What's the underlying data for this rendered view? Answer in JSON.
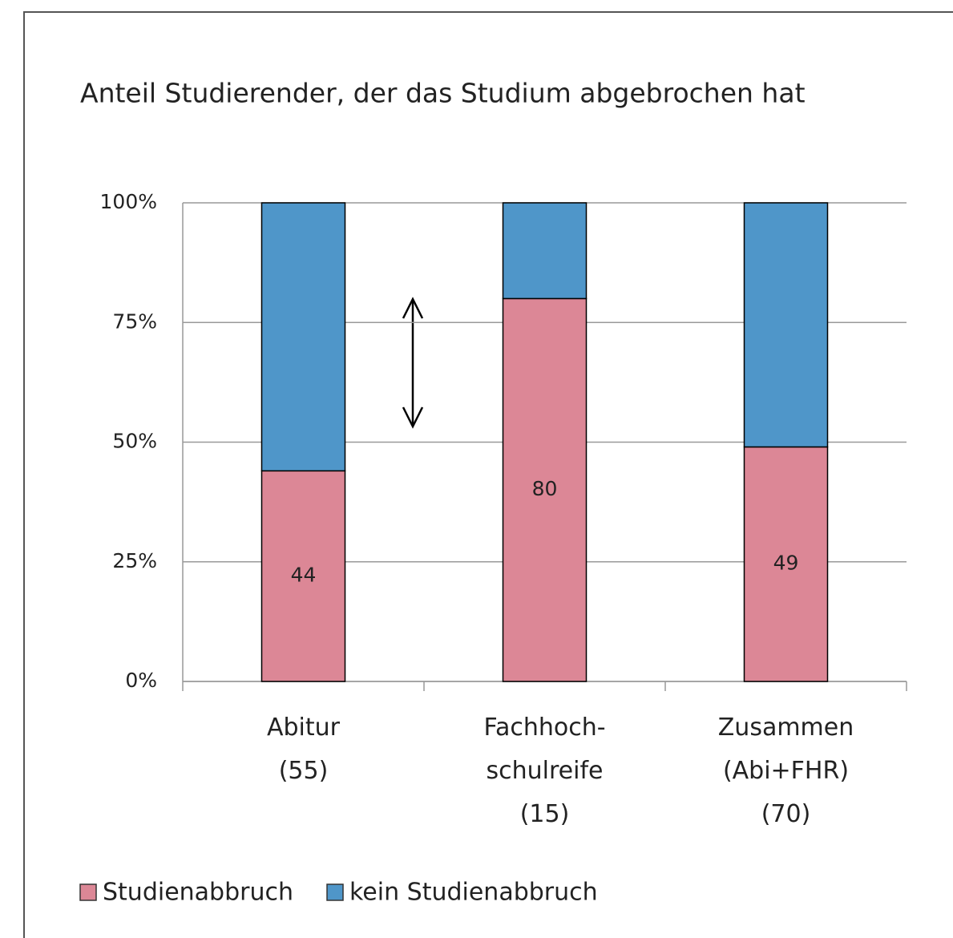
{
  "chart_data": {
    "type": "stacked_bar",
    "title": "Anteil Studierender, der das Studium abgebrochen hat",
    "categories": [
      "Abitur\n(55)",
      "Fachhoch-\nschulreife\n(15)",
      "Zusammen\n(Abi+FHR)\n(70)"
    ],
    "series": [
      {
        "name": "Studienabbruch",
        "color": "#dc8796",
        "values": [
          44,
          80,
          49
        ]
      },
      {
        "name": "kein Studienabbruch",
        "color": "#4f96c9",
        "values": [
          56,
          20,
          51
        ]
      }
    ],
    "data_labels_series": 0,
    "ylim": [
      0,
      100
    ],
    "yticks": [
      {
        "value": 0,
        "label": "0%"
      },
      {
        "value": 25,
        "label": "25%"
      },
      {
        "value": 50,
        "label": "50%"
      },
      {
        "value": 75,
        "label": "75%"
      },
      {
        "value": 100,
        "label": "100%"
      }
    ],
    "grid": true,
    "legend": "bottom"
  }
}
